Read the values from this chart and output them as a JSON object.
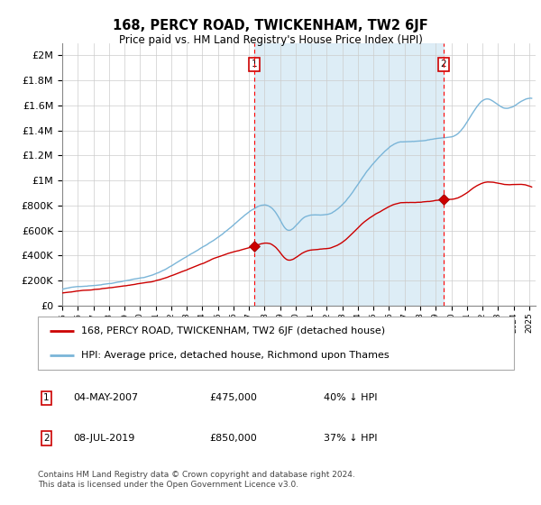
{
  "title": "168, PERCY ROAD, TWICKENHAM, TW2 6JF",
  "subtitle": "Price paid vs. HM Land Registry's House Price Index (HPI)",
  "hpi_label": "HPI: Average price, detached house, Richmond upon Thames",
  "property_label": "168, PERCY ROAD, TWICKENHAM, TW2 6JF (detached house)",
  "hpi_color": "#7ab5d8",
  "property_color": "#cc0000",
  "bg_color": "#ddeeff",
  "sale1_date": "04-MAY-2007",
  "sale1_price": 475000,
  "sale1_pct": "40% ↓ HPI",
  "sale2_date": "08-JUL-2019",
  "sale2_price": 850000,
  "sale2_pct": "37% ↓ HPI",
  "ylim": [
    0,
    2100000
  ],
  "footnote1": "Contains HM Land Registry data © Crown copyright and database right 2024.",
  "footnote2": "This data is licensed under the Open Government Licence v3.0."
}
